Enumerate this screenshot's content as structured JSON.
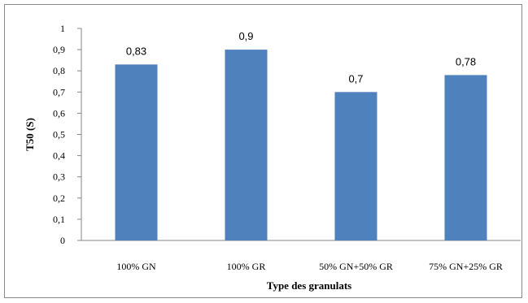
{
  "chart_data": {
    "type": "bar",
    "categories": [
      "100% GN",
      "100% GR",
      "50% GN+50% GR",
      "75% GN+25% GR"
    ],
    "values": [
      0.83,
      0.9,
      0.7,
      0.78
    ],
    "data_labels": [
      "0,83",
      "0,9",
      "0,7",
      "0,78"
    ],
    "xlabel": "Type des granulats",
    "ylabel": "T50 (S)",
    "ylim": [
      0,
      1
    ],
    "yticks": [
      0,
      0.1,
      0.2,
      0.3,
      0.4,
      0.5,
      0.6,
      0.7,
      0.8,
      0.9,
      1
    ],
    "ytick_labels": [
      "0",
      "0,1",
      "0,2",
      "0,3",
      "0,4",
      "0,5",
      "0,6",
      "0,7",
      "0,8",
      "0,9",
      "1"
    ],
    "grid": false,
    "legend": "none",
    "bar_color": "#4f81bd"
  }
}
